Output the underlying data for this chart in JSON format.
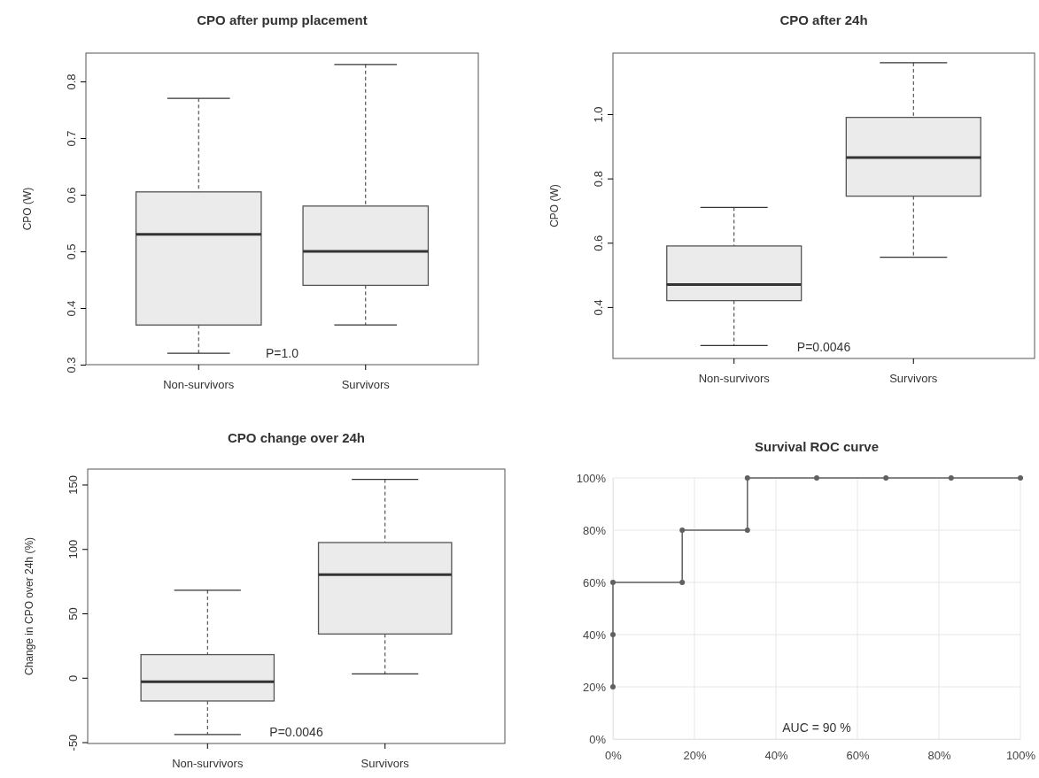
{
  "chart_data": [
    {
      "type": "box",
      "title": "CPO after pump placement",
      "ylabel": "CPO (W)",
      "categories": [
        "Non-survivors",
        "Survivors"
      ],
      "boxes": [
        {
          "low": 0.32,
          "q1": 0.37,
          "median": 0.53,
          "q3": 0.605,
          "high": 0.77
        },
        {
          "low": 0.37,
          "q1": 0.44,
          "median": 0.5,
          "q3": 0.58,
          "high": 0.83
        }
      ],
      "ylim": [
        0.3,
        0.85
      ],
      "yticks": [
        0.3,
        0.4,
        0.5,
        0.6,
        0.7,
        0.8
      ],
      "annotations": [
        "P=1.0"
      ]
    },
    {
      "type": "box",
      "title": "CPO after 24h",
      "ylabel": "CPO (W)",
      "categories": [
        "Non-survivors",
        "Survivors"
      ],
      "boxes": [
        {
          "low": 0.28,
          "q1": 0.42,
          "median": 0.47,
          "q3": 0.59,
          "high": 0.71
        },
        {
          "low": 0.555,
          "q1": 0.745,
          "median": 0.865,
          "q3": 0.99,
          "high": 1.16
        }
      ],
      "ylim": [
        0.24,
        1.19
      ],
      "yticks": [
        0.4,
        0.6,
        0.8,
        {
          "value": 1.0,
          "label": "1.0"
        }
      ],
      "annotations": [
        "P=0.0046"
      ]
    },
    {
      "type": "box",
      "title": "CPO change over 24h",
      "ylabel": "Change in CPO over 24h (%)",
      "categories": [
        "Non-survivors",
        "Survivors"
      ],
      "boxes": [
        {
          "low": -44,
          "q1": -18,
          "median": -3,
          "q3": 18,
          "high": 68
        },
        {
          "low": 3,
          "q1": 34,
          "median": 80,
          "q3": 105,
          "high": 154
        }
      ],
      "ylim": [
        -51,
        162
      ],
      "yticks": [
        -50,
        0,
        50,
        100,
        150
      ],
      "annotations": [
        "P=0.0046"
      ]
    },
    {
      "type": "line",
      "title": "Survival ROC curve",
      "x": [
        0,
        0,
        0,
        17,
        17,
        33,
        33,
        50,
        67,
        83,
        100
      ],
      "series": [
        {
          "color": "#606060",
          "values": [
            20,
            40,
            60,
            60,
            80,
            80,
            100,
            100,
            100,
            100,
            100
          ]
        }
      ],
      "xlim": [
        0,
        100
      ],
      "ylim": [
        0,
        100
      ],
      "xticks": [
        {
          "value": 0,
          "label": "0%"
        },
        {
          "value": 20,
          "label": "20%"
        },
        {
          "value": 40,
          "label": "40%"
        },
        {
          "value": 60,
          "label": "60%"
        },
        {
          "value": 80,
          "label": "80%"
        },
        {
          "value": 100,
          "label": "100%"
        }
      ],
      "yticks": [
        {
          "value": 0,
          "label": "0%"
        },
        {
          "value": 20,
          "label": "20%"
        },
        {
          "value": 40,
          "label": "40%"
        },
        {
          "value": 60,
          "label": "60%"
        },
        {
          "value": 80,
          "label": "80%"
        },
        {
          "value": 100,
          "label": "100%"
        }
      ],
      "grid": true,
      "marker": "circle",
      "annotations": [
        "AUC = 90 %"
      ]
    }
  ]
}
